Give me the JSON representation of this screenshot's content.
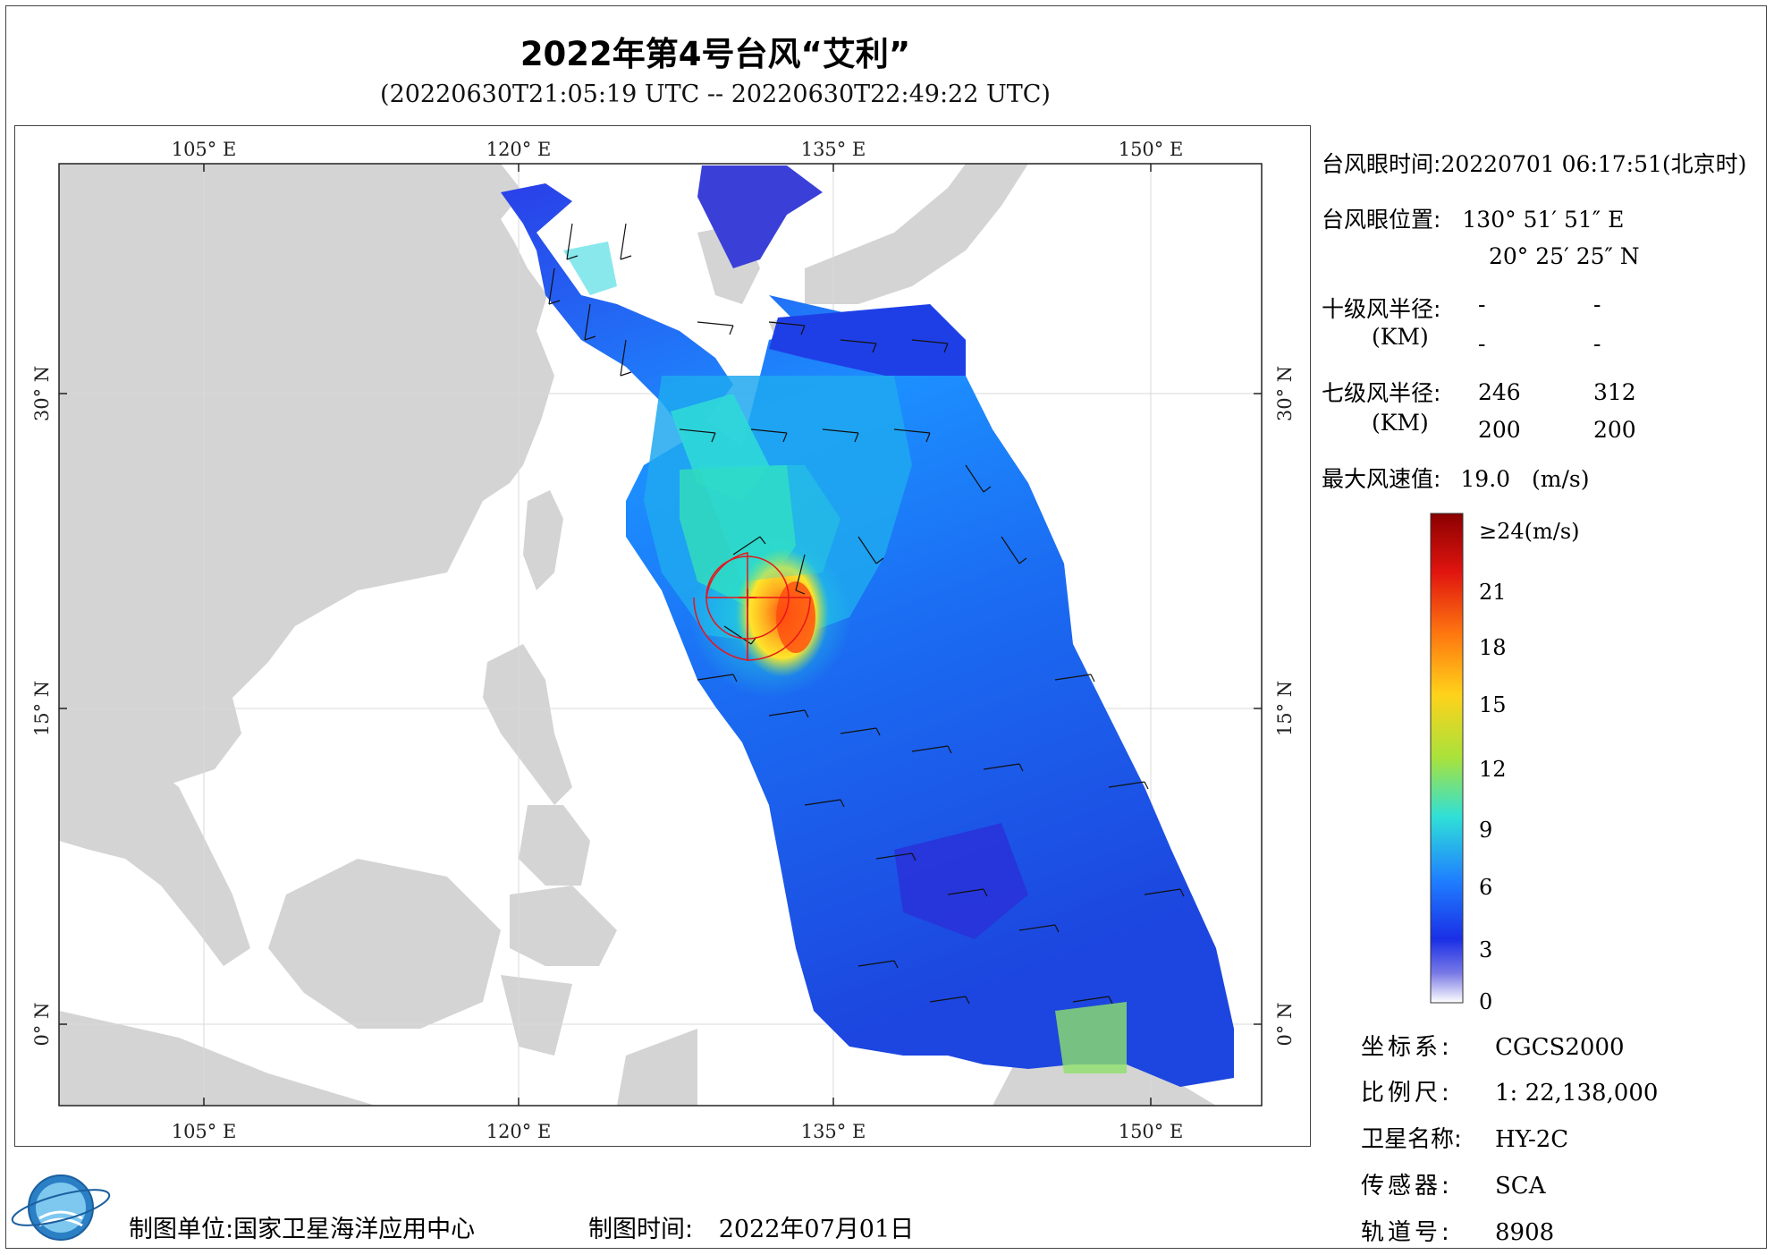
{
  "title": "2022年第4号台风“艾利”",
  "subtitle": "(20220630T21:05:19 UTC -- 20220630T22:49:22 UTC)",
  "map": {
    "lon_labels": [
      "105° E",
      "120° E",
      "135° E",
      "150° E"
    ],
    "lat_labels": [
      "30° N",
      "15° N",
      "0° N"
    ],
    "colors": {
      "land": "#d4d4d4",
      "sea": "#ffffff",
      "grid": "#cfcfcf",
      "circle": "#e8141b"
    },
    "typhoon_eye_marker": "plus-cross"
  },
  "info": {
    "eye_time_label": "台风眼时间:",
    "eye_time_value": "20220701 06:17:51(北京时)",
    "eye_pos_label": "台风眼位置:",
    "eye_lon": "130° 51′ 51″ E",
    "eye_lat": "20° 25′ 25″ N",
    "r10_label": "十级风半径:",
    "r10_unit": "(KM)",
    "r10_values": [
      "-",
      "-",
      "-",
      "-"
    ],
    "r7_label": "七级风半径:",
    "r7_unit": "(KM)",
    "r7_values": [
      "246",
      "312",
      "200",
      "200"
    ],
    "max_wind_label": "最大风速值:",
    "max_wind_value": "19.0",
    "max_wind_unit": "(m/s)"
  },
  "legend": {
    "labels": [
      "≥24(m/s)",
      "21",
      "18",
      "15",
      "12",
      "9",
      "6",
      "3",
      "0"
    ],
    "colors": [
      "#8b0000",
      "#e0150f",
      "#ff7a10",
      "#ffd21a",
      "#a8e23c",
      "#2fe0d8",
      "#1f7fff",
      "#1a2fe6",
      "#ffffff"
    ]
  },
  "meta": {
    "crs_label": "坐标系:",
    "crs_value": "CGCS2000",
    "scale_label": "比例尺:",
    "scale_value": "1: 22,138,000",
    "satellite_label": "卫星名称:",
    "satellite_value": "HY-2C",
    "sensor_label": "传感器:",
    "sensor_value": "SCA",
    "orbit_label": "轨道号:",
    "orbit_value": "8908"
  },
  "footer": {
    "unit_label": "制图单位:",
    "unit_value": "国家卫星海洋应用中心",
    "time_label": "制图时间:",
    "time_value": "2022年07月01日"
  }
}
